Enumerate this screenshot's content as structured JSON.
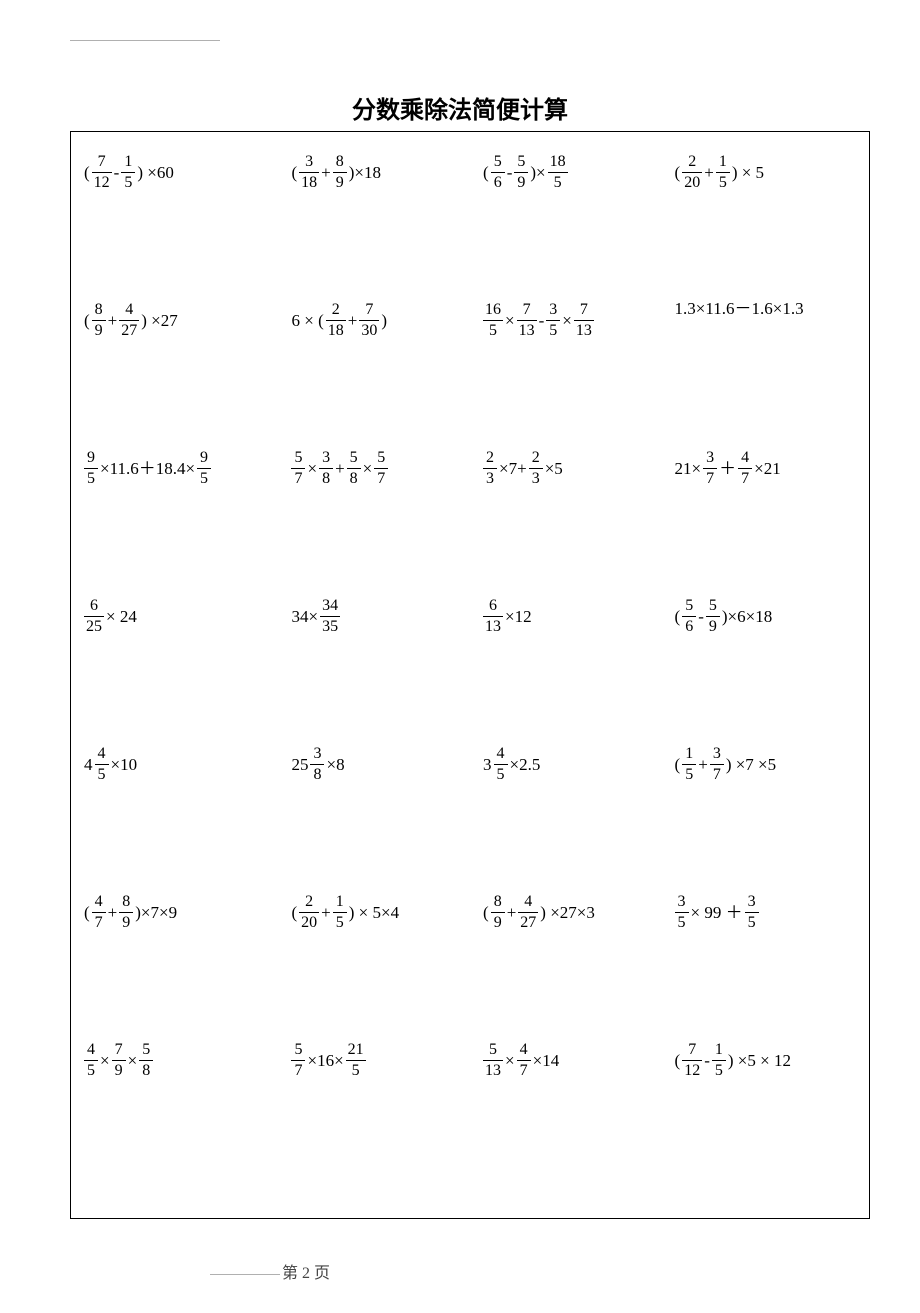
{
  "title": "分数乘除法简便计算",
  "page_label": "第 2 页",
  "font_color": "#000000",
  "background_color": "#ffffff",
  "border_color": "#000000",
  "rows": [
    [
      [
        [
          "t",
          "("
        ],
        [
          "f",
          "7",
          "12"
        ],
        [
          "t",
          "-"
        ],
        [
          "f",
          "1",
          "5"
        ],
        [
          "t",
          ") ×60"
        ]
      ],
      [
        [
          "t",
          "("
        ],
        [
          "f",
          "3",
          "18"
        ],
        [
          "t",
          "+"
        ],
        [
          "f",
          "8",
          "9"
        ],
        [
          "t",
          ")×18"
        ]
      ],
      [
        [
          "t",
          "("
        ],
        [
          "f",
          "5",
          "6"
        ],
        [
          "t",
          "-"
        ],
        [
          "f",
          "5",
          "9"
        ],
        [
          "t",
          ")×"
        ],
        [
          "f",
          "18",
          "5"
        ]
      ],
      [
        [
          "t",
          "("
        ],
        [
          "f",
          "2",
          "20"
        ],
        [
          "t",
          "+"
        ],
        [
          "f",
          "1",
          "5"
        ],
        [
          "t",
          ") × 5"
        ]
      ]
    ],
    [
      [
        [
          "t",
          "("
        ],
        [
          "f",
          "8",
          "9"
        ],
        [
          "t",
          "+"
        ],
        [
          "f",
          "4",
          "27"
        ],
        [
          "t",
          ") ×27"
        ]
      ],
      [
        [
          "t",
          "6 × ("
        ],
        [
          "f",
          "2",
          "18"
        ],
        [
          "t",
          "+"
        ],
        [
          "f",
          "7",
          "30"
        ],
        [
          "t",
          ")"
        ]
      ],
      [
        [
          "f",
          "16",
          "5"
        ],
        [
          "t",
          "×"
        ],
        [
          "f",
          "7",
          "13"
        ],
        [
          "t",
          "-"
        ],
        [
          "f",
          "3",
          "5"
        ],
        [
          "t",
          "×"
        ],
        [
          "f",
          "7",
          "13"
        ]
      ],
      [
        [
          "t",
          "1.3×11.6－1.6×1.3"
        ]
      ]
    ],
    [
      [
        [
          "f",
          "9",
          "5"
        ],
        [
          "t",
          "×11.6＋18.4×"
        ],
        [
          "f",
          "9",
          "5"
        ]
      ],
      [
        [
          "f",
          "5",
          "7"
        ],
        [
          "t",
          "×"
        ],
        [
          "f",
          "3",
          "8"
        ],
        [
          "t",
          "+"
        ],
        [
          "f",
          "5",
          "8"
        ],
        [
          "t",
          "×"
        ],
        [
          "f",
          "5",
          "7"
        ]
      ],
      [
        [
          "f",
          "2",
          "3"
        ],
        [
          "t",
          "×7+"
        ],
        [
          "f",
          "2",
          "3"
        ],
        [
          "t",
          "×5"
        ]
      ],
      [
        [
          "t",
          "21×"
        ],
        [
          "f",
          "3",
          "7"
        ],
        [
          "t",
          "＋"
        ],
        [
          "f",
          "4",
          "7"
        ],
        [
          "t",
          "×21"
        ]
      ]
    ],
    [
      [
        [
          "f",
          "6",
          "25"
        ],
        [
          "t",
          " × 24"
        ]
      ],
      [
        [
          "t",
          "34×"
        ],
        [
          "f",
          "34",
          "35"
        ]
      ],
      [
        [
          "f",
          "6",
          "13"
        ],
        [
          "t",
          "×12"
        ]
      ],
      [
        [
          "t",
          "("
        ],
        [
          "f",
          "5",
          "6"
        ],
        [
          "t",
          "-"
        ],
        [
          "f",
          "5",
          "9"
        ],
        [
          "t",
          ")×6×18"
        ]
      ]
    ],
    [
      [
        [
          "t",
          "4"
        ],
        [
          "f",
          "4",
          "5"
        ],
        [
          "t",
          "×10"
        ]
      ],
      [
        [
          "t",
          "25"
        ],
        [
          "f",
          "3",
          "8"
        ],
        [
          "t",
          "×8"
        ]
      ],
      [
        [
          "t",
          "3"
        ],
        [
          "f",
          "4",
          "5"
        ],
        [
          "t",
          "×2.5"
        ]
      ],
      [
        [
          "t",
          "("
        ],
        [
          "f",
          "1",
          "5"
        ],
        [
          "t",
          "+"
        ],
        [
          "f",
          "3",
          "7"
        ],
        [
          "t",
          ") ×7 ×5"
        ]
      ]
    ],
    [
      [
        [
          "t",
          "("
        ],
        [
          "f",
          "4",
          "7"
        ],
        [
          "t",
          "+"
        ],
        [
          "f",
          "8",
          "9"
        ],
        [
          "t",
          ")×7×9"
        ]
      ],
      [
        [
          "t",
          "("
        ],
        [
          "f",
          "2",
          "20"
        ],
        [
          "t",
          "+"
        ],
        [
          "f",
          "1",
          "5"
        ],
        [
          "t",
          ") × 5×4"
        ]
      ],
      [
        [
          "t",
          "("
        ],
        [
          "f",
          "8",
          "9"
        ],
        [
          "t",
          "+"
        ],
        [
          "f",
          "4",
          "27"
        ],
        [
          "t",
          ") ×27×3"
        ]
      ],
      [
        [
          "f",
          "3",
          "5"
        ],
        [
          "t",
          "× 99 ＋"
        ],
        [
          "f",
          "3",
          "5"
        ]
      ]
    ],
    [
      [
        [
          "f",
          "4",
          "5"
        ],
        [
          "t",
          "×"
        ],
        [
          "f",
          "7",
          "9"
        ],
        [
          "t",
          "×"
        ],
        [
          "f",
          "5",
          "8"
        ]
      ],
      [
        [
          "f",
          "5",
          "7"
        ],
        [
          "t",
          "×16×"
        ],
        [
          "f",
          "21",
          "5"
        ]
      ],
      [
        [
          "f",
          "5",
          "13"
        ],
        [
          "t",
          "×"
        ],
        [
          "f",
          "4",
          "7"
        ],
        [
          "t",
          "×14"
        ]
      ],
      [
        [
          "t",
          "("
        ],
        [
          "f",
          "7",
          "12"
        ],
        [
          "t",
          "-"
        ],
        [
          "f",
          "1",
          "5"
        ],
        [
          "t",
          ") ×5 × 12"
        ]
      ]
    ]
  ]
}
